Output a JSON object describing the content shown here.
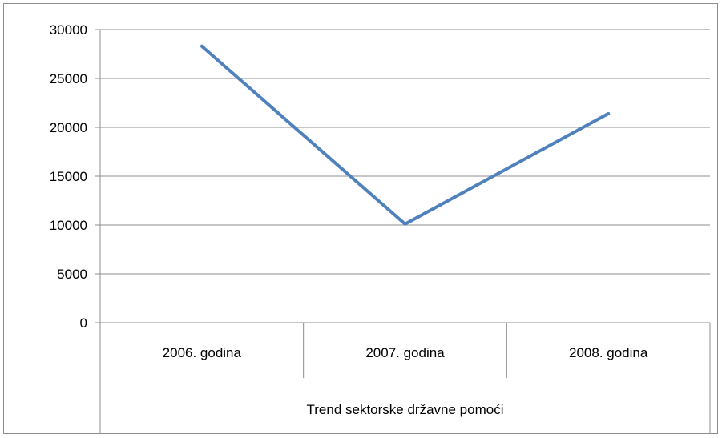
{
  "chart_data": {
    "type": "line",
    "categories": [
      "2006. godina",
      "2007. godina",
      "2008. godina"
    ],
    "series": [
      {
        "values": [
          28300,
          10100,
          21400
        ],
        "color": "#4f81bd"
      }
    ],
    "title": "",
    "xlabel": "Trend sektorske državne pomoći",
    "ylabel": "",
    "ylim": [
      0,
      30000
    ],
    "yticks": [
      "0",
      "5000",
      "10000",
      "15000",
      "20000",
      "25000",
      "30000"
    ],
    "grid": true,
    "legend": "none"
  },
  "colors": {
    "line": "#4f81bd",
    "grid": "#8c8c8c",
    "axis": "#8c8c8c"
  }
}
